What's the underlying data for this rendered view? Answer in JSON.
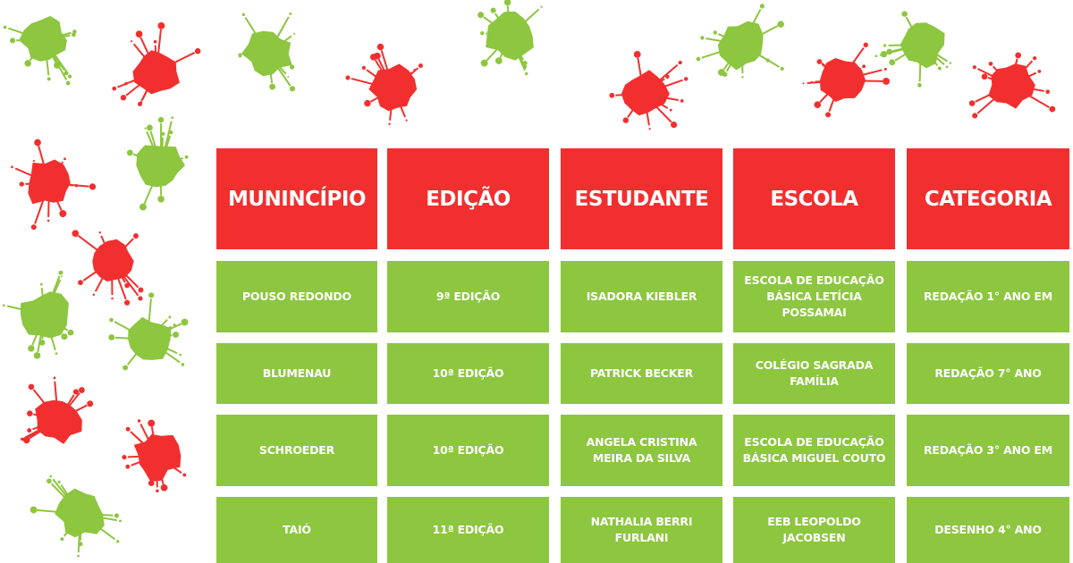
{
  "colors": {
    "header": "#f22f2f",
    "cell": "#8dc63f",
    "splat_red": "#f22f2f",
    "splat_green": "#8dc63f"
  },
  "table": {
    "headers": [
      "MUNINCÍPIO",
      "EDIÇÃO",
      "ESTUDANTE",
      "ESCOLA",
      "CATEGORIA"
    ],
    "rows": [
      [
        "POUSO REDONDO",
        "9ª EDIÇÃO",
        "ISADORA KIEBLER",
        "ESCOLA DE EDUCAÇÃO BÁSICA LETÍCIA POSSAMAI",
        "REDAÇÃO 1° ANO EM"
      ],
      [
        "BLUMENAU",
        "10ª EDIÇÃO",
        "PATRICK BECKER",
        "COLÉGIO SAGRADA FAMÍLIA",
        "REDAÇÃO 7° ANO"
      ],
      [
        "SCHROEDER",
        "10ª EDIÇÃO",
        "ANGELA CRISTINA MEIRA DA SILVA",
        "ESCOLA DE EDUCAÇÃO BÁSICA MIGUEL COUTO",
        "REDAÇÃO 3° ANO EM"
      ],
      [
        "TAIÓ",
        "11ª EDIÇÃO",
        "NATHALIA BERRI FURLANI",
        "EEB LEOPOLDO JACOBSEN",
        "DESENHO 4° ANO"
      ]
    ]
  }
}
